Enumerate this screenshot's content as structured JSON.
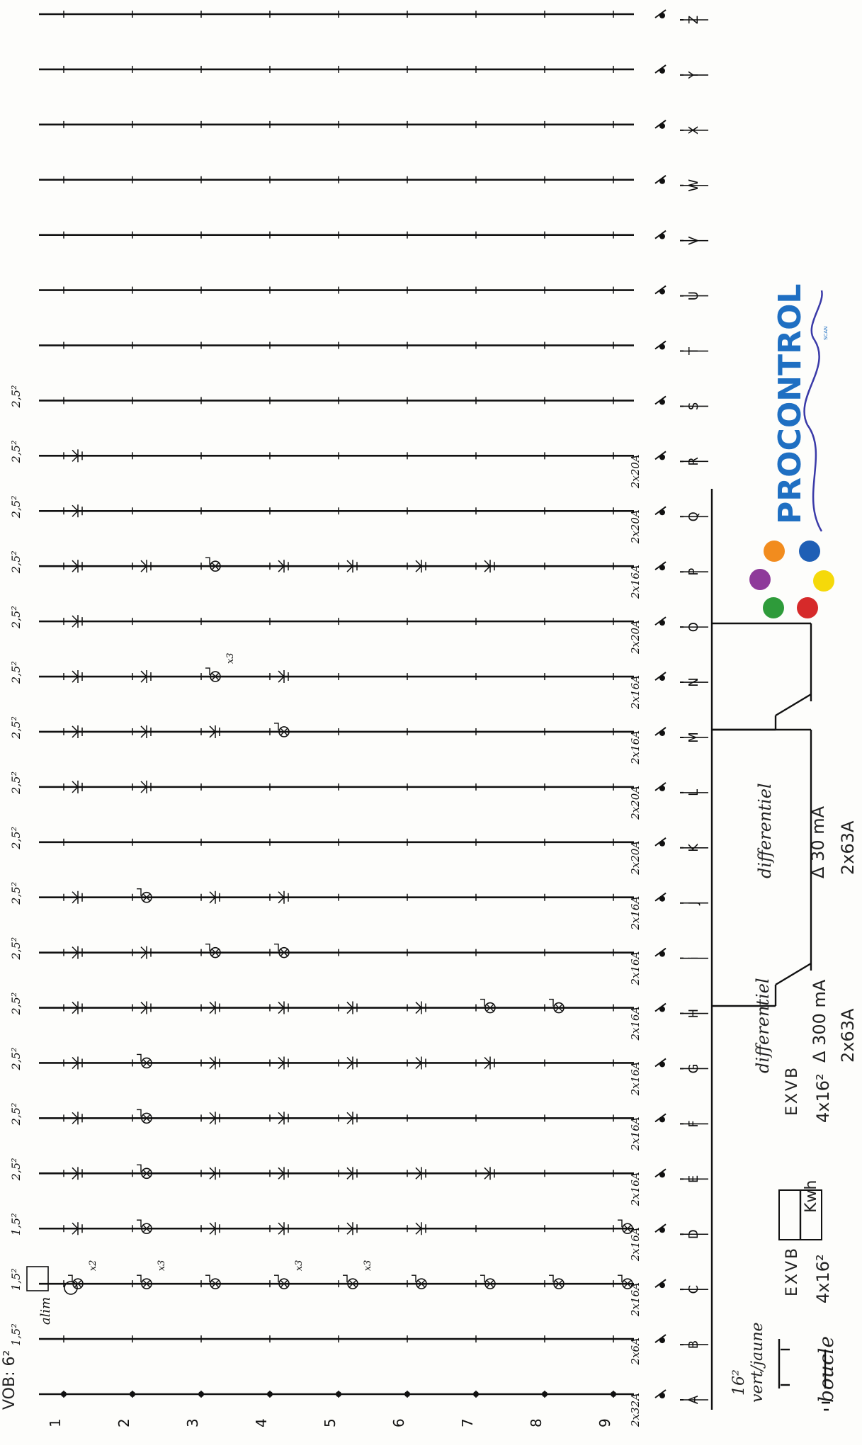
{
  "header": {
    "wire_section": "VOB: 6²"
  },
  "circuits": [
    {
      "letter": "A",
      "breaker": "2x32A"
    },
    {
      "letter": "B",
      "breaker": "2x6A"
    },
    {
      "letter": "C",
      "breaker": "2x16A"
    },
    {
      "letter": "D",
      "breaker": "2x16A"
    },
    {
      "letter": "E",
      "breaker": "2x16A"
    },
    {
      "letter": "F",
      "breaker": "2x16A"
    },
    {
      "letter": "G",
      "breaker": "2x16A"
    },
    {
      "letter": "H",
      "breaker": "2x16A"
    },
    {
      "letter": "i",
      "breaker": "2x16A"
    },
    {
      "letter": "J",
      "breaker": "2x16A"
    },
    {
      "letter": "K",
      "breaker": "2x20A"
    },
    {
      "letter": "L",
      "breaker": "2x20A"
    },
    {
      "letter": "M",
      "breaker": "2x16A"
    },
    {
      "letter": "N",
      "breaker": "2x16A"
    },
    {
      "letter": "O",
      "breaker": "2x20A"
    },
    {
      "letter": "P",
      "breaker": "2x16A"
    },
    {
      "letter": "Q",
      "breaker": "2x20A"
    },
    {
      "letter": "R",
      "breaker": "2x20A"
    },
    {
      "letter": "S",
      "breaker": ""
    },
    {
      "letter": "T",
      "breaker": ""
    },
    {
      "letter": "U",
      "breaker": ""
    },
    {
      "letter": "V",
      "breaker": ""
    },
    {
      "letter": "W",
      "breaker": ""
    },
    {
      "letter": "X",
      "breaker": ""
    },
    {
      "letter": "Y",
      "breaker": ""
    },
    {
      "letter": "Z",
      "breaker": ""
    }
  ],
  "sections": [
    "1,5²",
    "1,5²",
    "1,5²",
    "2,5²",
    "2,5²",
    "2,5²",
    "2,5²",
    "2,5²",
    "2,5²",
    "2,5²",
    "2,5²",
    "2,5²",
    "2,5²",
    "2,5²",
    "2,5²",
    "2,5²",
    "2,5²",
    "2,5²"
  ],
  "rows": [
    "1",
    "2",
    "3",
    "4",
    "5",
    "6",
    "7",
    "8",
    "9"
  ],
  "annotations": {
    "alim": "alim",
    "x3_a": "x3",
    "x3_b": "x3",
    "x3_c": "x3",
    "x3_d": "x3",
    "x2": "x2"
  },
  "supply": {
    "earth_section": "16²",
    "earth_label": "vert/jaune",
    "loop_label": "boucle",
    "cable1_type": "EXVB",
    "cable1_section": "4x16²",
    "meter": "Kwh",
    "cable2_type": "EXVB",
    "cable2_section": "4x16²",
    "diff1_label": "differentiel",
    "diff1_rating": "Δ 300 mA",
    "diff1_breaker": "2x63A",
    "diff2_label": "differentiel",
    "diff2_rating": "Δ 30 mA",
    "diff2_breaker": "2x63A"
  },
  "logo": {
    "text": "PROCONTROL",
    "tag": "SCAN",
    "colors": [
      "#f28c1e",
      "#1f5fb5",
      "#f5d90a",
      "#d62a2a",
      "#2e9b3a",
      "#8e3a9a"
    ]
  }
}
